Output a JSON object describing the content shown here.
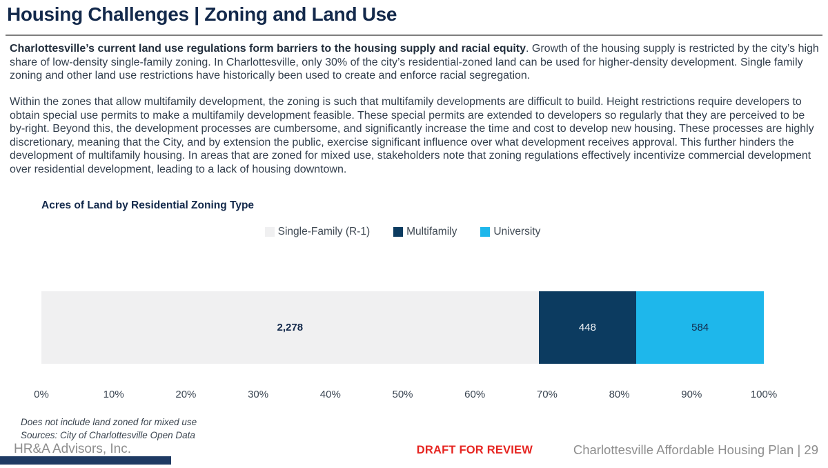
{
  "slide": {
    "title": "Housing Challenges | Zoning and Land Use",
    "paragraph1_bold": "Charlottesville’s current land use regulations form barriers to the housing supply and racial equity",
    "paragraph1_rest": ". Growth of the housing supply is restricted by the city’s high share of low-density single-family zoning. In Charlottesville, only 30% of the city’s residential-zoned land can be used for higher-density development. Single family zoning and other land use restrictions have historically been used to create and enforce racial segregation.",
    "paragraph2": "Within the zones that allow multifamily development, the zoning is such that multifamily developments are difficult to build. Height restrictions require developers to obtain special use permits to make a multifamily development feasible. These special permits are extended to developers so regularly that they are perceived to be by-right. Beyond this, the development processes are cumbersome, and significantly increase the time and cost to develop new housing. These processes are highly discretionary, meaning that the City, and by extension the public, exercise significant influence over what development receives approval. This further hinders the development of multifamily housing. In areas that are zoned for mixed use, stakeholders note that zoning regulations effectively incentivize commercial development over residential development, leading to a lack of housing downtown."
  },
  "chart_data": {
    "type": "bar",
    "orientation": "horizontal-stacked",
    "title": "Acres of Land by Residential Zoning Type",
    "categories": [
      "Single-Family (R-1)",
      "Multifamily",
      "University"
    ],
    "series": [
      {
        "name": "Single-Family (R-1)",
        "value": 2278,
        "label": "2,278",
        "color": "#F0F0F1",
        "label_color": "#13294B",
        "label_bold": true
      },
      {
        "name": "Multifamily",
        "value": 448,
        "label": "448",
        "color": "#0C3B60",
        "label_color": "#EFF3F7",
        "label_bold": false
      },
      {
        "name": "University",
        "value": 584,
        "label": "584",
        "color": "#1EB7EB",
        "label_color": "#13294B",
        "label_bold": false
      }
    ],
    "x_ticks": [
      "0%",
      "10%",
      "20%",
      "30%",
      "40%",
      "50%",
      "60%",
      "70%",
      "80%",
      "90%",
      "100%"
    ],
    "xlim": [
      0,
      100
    ],
    "legend_position": "top-center",
    "grid": false,
    "footnote1": "Does not include land zoned for mixed use",
    "footnote2": "Sources: City of Charlottesville Open Data"
  },
  "footer": {
    "company": "HR&A Advisors, Inc.",
    "draft": "DRAFT FOR REVIEW",
    "plan": "Charlottesville Affordable Housing Plan | 29"
  },
  "colors": {
    "brand_navy": "#13294B",
    "body_text": "#333F4D",
    "draft_red": "#E62420",
    "footer_gray": "#8E8E8E",
    "accent_bar_navy": "#1E3A63",
    "segment_gray": "#F0F0F1",
    "segment_navy": "#0C3B60",
    "segment_cyan": "#1EB7EB"
  }
}
